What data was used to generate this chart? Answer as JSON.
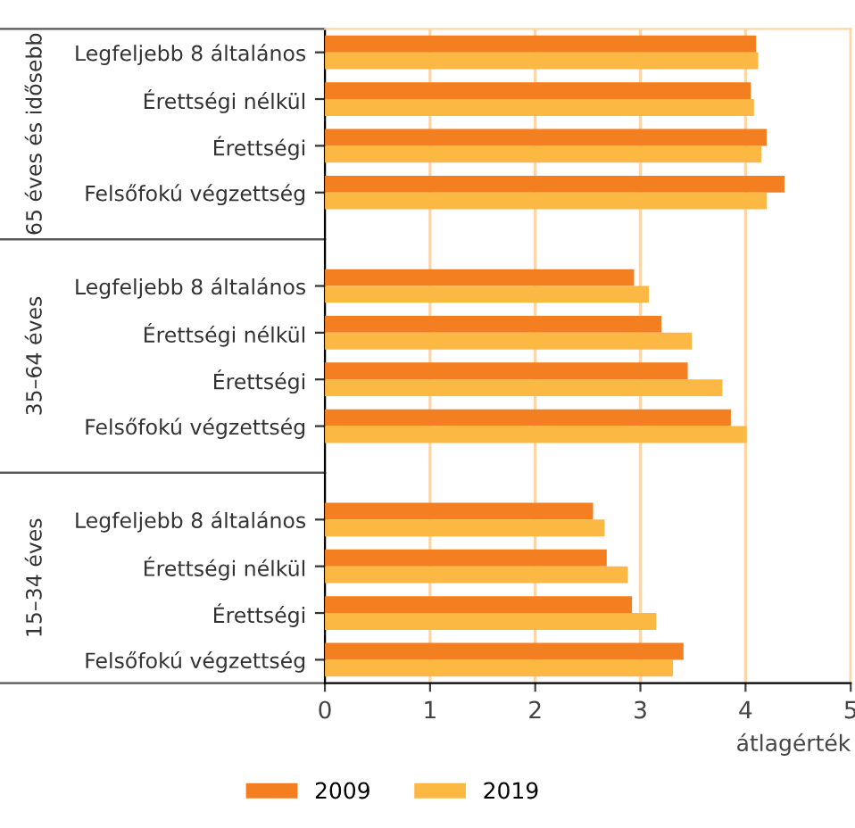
{
  "chart_data": {
    "type": "bar",
    "orientation": "horizontal",
    "categories": [
      "Legfeljebb 8 általános",
      "Érettségi nélkül",
      "Érettségi",
      "Felsőfokú végzettség",
      null,
      "Legfeljebb 8 általános",
      "Érettségi nélkül",
      "Érettségi",
      "Felsőfokú végzettség",
      null,
      "Legfeljebb 8 általános",
      "Érettségi nélkül",
      "Érettségi",
      "Felsőfokú végzettség"
    ],
    "series": [
      {
        "name": "2009",
        "color": "#f47f20",
        "values": [
          4.1,
          4.05,
          4.2,
          4.37,
          null,
          2.94,
          3.2,
          3.45,
          3.86,
          null,
          2.55,
          2.68,
          2.92,
          3.41
        ]
      },
      {
        "name": "2019",
        "color": "#fbb843",
        "values": [
          4.12,
          4.08,
          4.15,
          4.2,
          null,
          3.08,
          3.49,
          3.78,
          4.01,
          null,
          2.66,
          2.88,
          3.15,
          3.31
        ]
      }
    ],
    "annotations": [
      "65 éves és idősebb",
      "35–64 éves",
      "15–34 éves"
    ],
    "xlabel": "átlagérték",
    "xlim": [
      0,
      5
    ],
    "xticks": [
      0,
      1,
      2,
      3,
      4,
      5
    ],
    "grid": "x",
    "legend": "bottom"
  }
}
